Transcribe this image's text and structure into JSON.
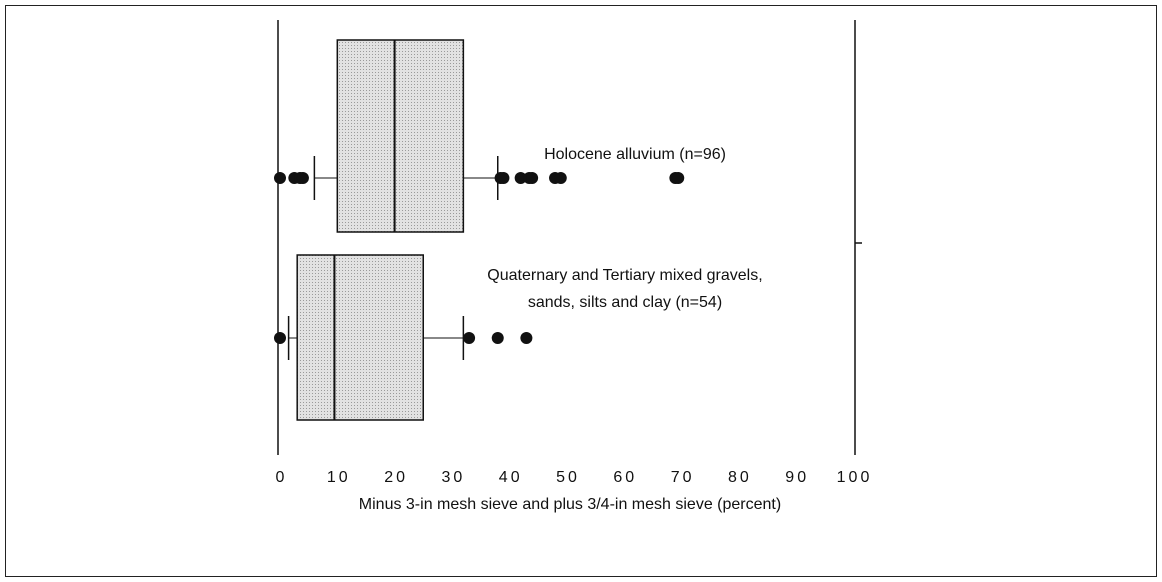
{
  "chart_data": {
    "type": "boxplot",
    "xlabel": "Minus 3-in mesh sieve and plus 3/4-in mesh sieve (percent)",
    "xlim": [
      0,
      100
    ],
    "xticks": [
      0,
      10,
      20,
      30,
      40,
      50,
      60,
      70,
      80,
      90,
      100
    ],
    "color": "#d9d9d9",
    "boxes": [
      {
        "label": [
          "Holocene alluvium (n=96)"
        ],
        "whislo": 6,
        "q1": 10,
        "med": 20,
        "q3": 32,
        "whishi": 38,
        "fliers": [
          0,
          2.5,
          3.5,
          4,
          38.5,
          39,
          42,
          43.5,
          44,
          48,
          49,
          69,
          69.5
        ]
      },
      {
        "label": [
          "Quaternary and Tertiary mixed gravels,",
          "sands, silts and clay  (n=54)"
        ],
        "whislo": 1.5,
        "q1": 3,
        "med": 9.5,
        "q3": 25,
        "whishi": 32,
        "fliers": [
          0,
          33,
          38,
          43
        ]
      }
    ]
  }
}
